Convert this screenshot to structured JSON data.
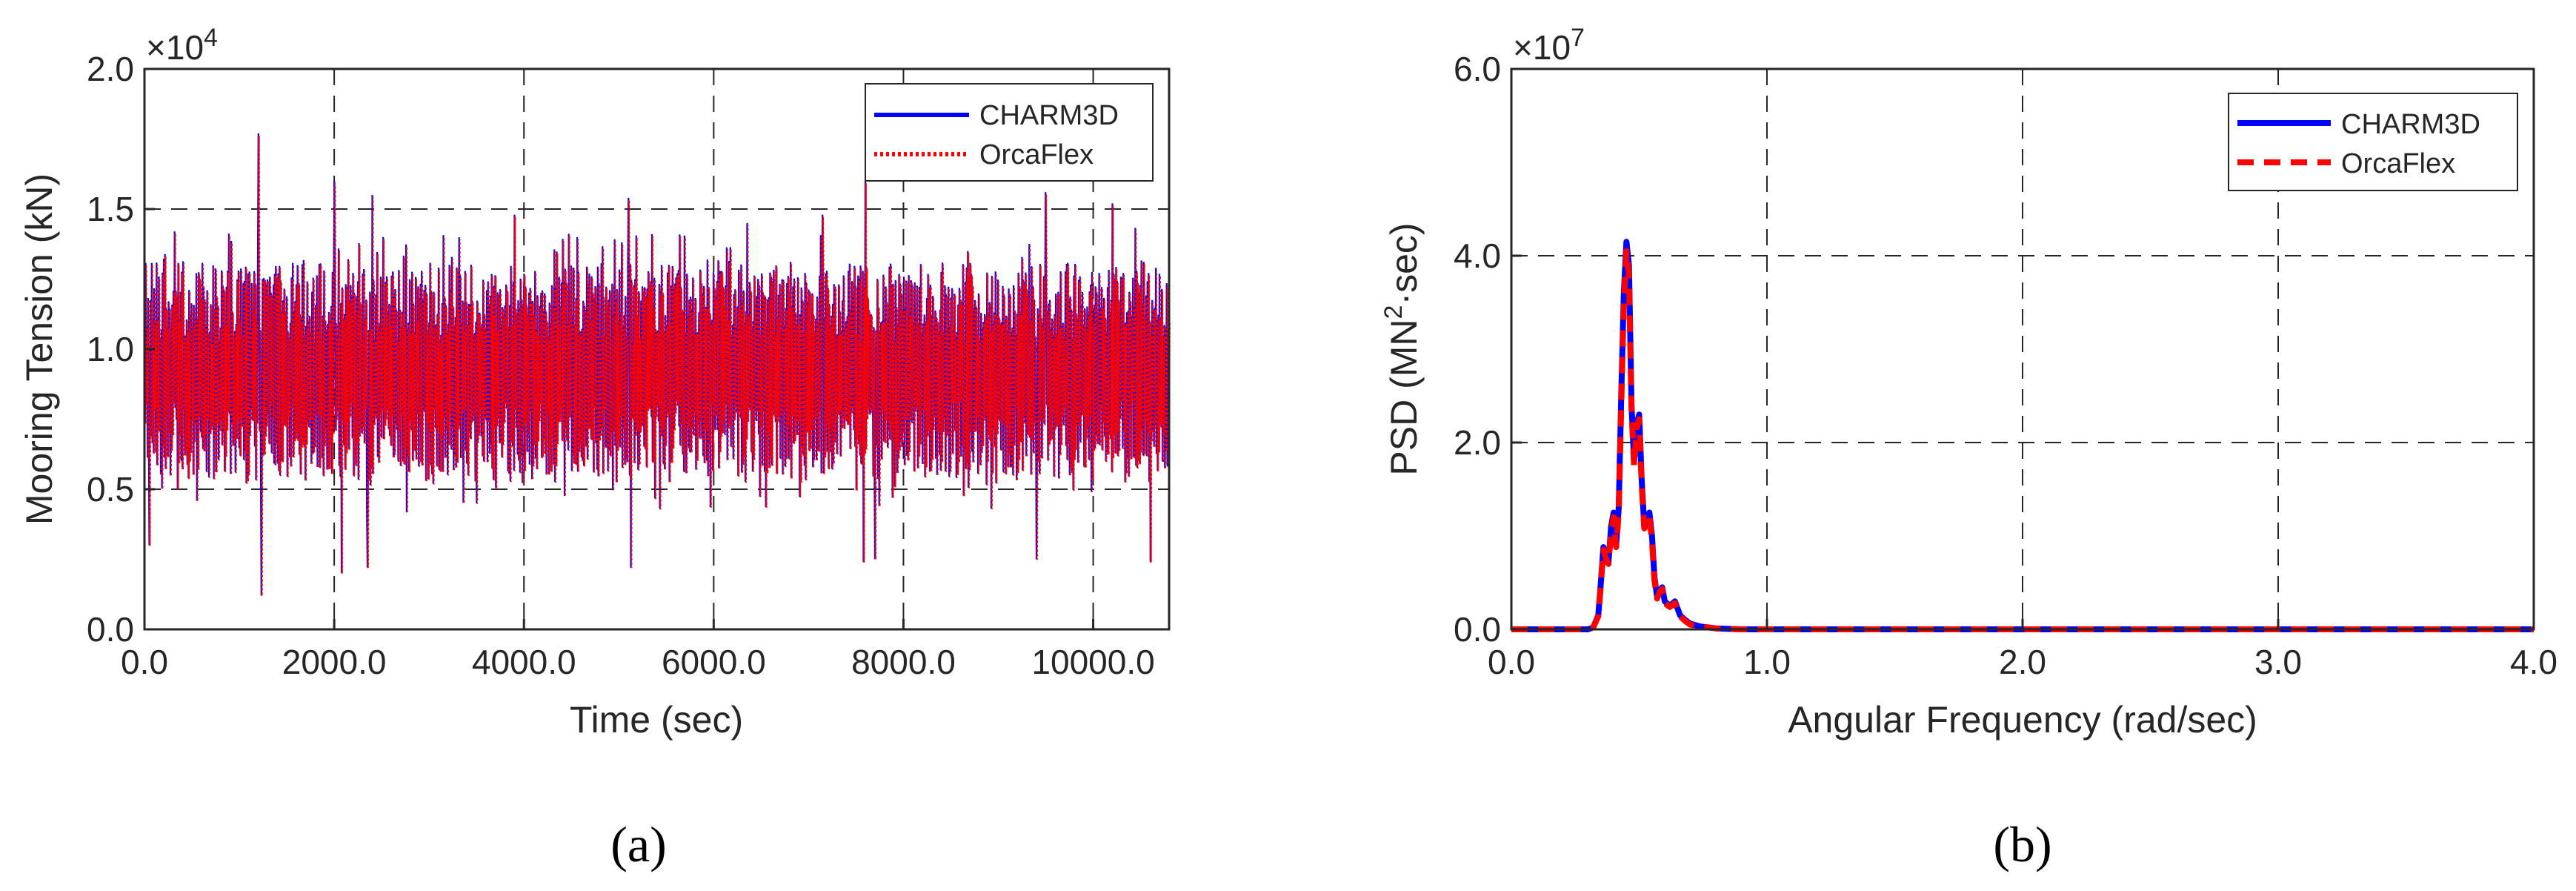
{
  "chart_data": [
    {
      "type": "line",
      "panel_label": "(a)",
      "xlabel": "Time (sec)",
      "ylabel": "Mooring Tension (kN)",
      "y_multiplier": "×10",
      "y_multiplier_exp": "4",
      "xlim": [
        0,
        10800
      ],
      "ylim": [
        0,
        2.0
      ],
      "xticks": [
        0,
        2000,
        4000,
        6000,
        8000,
        10000
      ],
      "xtick_labels": [
        "0.0",
        "2000.0",
        "4000.0",
        "6000.0",
        "8000.0",
        "10000.0"
      ],
      "yticks": [
        0,
        0.5,
        1.0,
        1.5,
        2.0
      ],
      "ytick_labels": [
        "0.0",
        "0.5",
        "1.0",
        "1.5",
        "2.0"
      ],
      "grid": "dashed",
      "legend_position": "top-right",
      "series": [
        {
          "name": "CHARM3D",
          "color": "#0000ff",
          "style": "solid"
        },
        {
          "name": "OrcaFlex",
          "color": "#ff0000",
          "style": "dotted"
        }
      ],
      "signal": {
        "mean": 0.92,
        "t_start": 0,
        "t_end": 10800,
        "peaks": [
          {
            "t": 1200,
            "y": 1.77
          },
          {
            "t": 1230,
            "y": 0.12
          },
          {
            "t": 2000,
            "y": 1.6
          },
          {
            "t": 2080,
            "y": 0.2
          },
          {
            "t": 2400,
            "y": 1.55
          },
          {
            "t": 2350,
            "y": 0.22
          },
          {
            "t": 5100,
            "y": 1.54
          },
          {
            "t": 5130,
            "y": 0.22
          },
          {
            "t": 7600,
            "y": 1.6
          },
          {
            "t": 7580,
            "y": 0.24
          },
          {
            "t": 7700,
            "y": 0.25
          },
          {
            "t": 9400,
            "y": 0.25
          },
          {
            "t": 10600,
            "y": 0.24
          },
          {
            "t": 9500,
            "y": 1.56
          },
          {
            "t": 6350,
            "y": 1.45
          },
          {
            "t": 320,
            "y": 1.42
          },
          {
            "t": 10200,
            "y": 1.52
          },
          {
            "t": 50,
            "y": 0.3
          },
          {
            "t": 3900,
            "y": 1.48
          },
          {
            "t": 7150,
            "y": 1.48
          }
        ]
      }
    },
    {
      "type": "line",
      "panel_label": "(b)",
      "xlabel": "Angular Frequency (rad/sec)",
      "ylabel_pre": "PSD (MN",
      "ylabel_sup": "2",
      "ylabel_post": "·sec)",
      "y_multiplier": "×10",
      "y_multiplier_exp": "7",
      "xlim": [
        0,
        4.0
      ],
      "ylim": [
        0,
        6.0
      ],
      "xticks": [
        0,
        1,
        2,
        3,
        4
      ],
      "xtick_labels": [
        "0.0",
        "1.0",
        "2.0",
        "3.0",
        "4.0"
      ],
      "yticks": [
        0,
        2,
        4,
        6
      ],
      "ytick_labels": [
        "0.0",
        "2.0",
        "4.0",
        "6.0"
      ],
      "grid": "dashed",
      "legend_position": "top-right",
      "series": [
        {
          "name": "CHARM3D",
          "color": "#0000ff",
          "style": "solid",
          "x": [
            0,
            0.3,
            0.32,
            0.34,
            0.35,
            0.36,
            0.37,
            0.38,
            0.39,
            0.4,
            0.41,
            0.42,
            0.43,
            0.44,
            0.45,
            0.46,
            0.47,
            0.48,
            0.49,
            0.5,
            0.51,
            0.52,
            0.53,
            0.54,
            0.55,
            0.56,
            0.57,
            0.58,
            0.59,
            0.6,
            0.62,
            0.64,
            0.66,
            0.68,
            0.7,
            0.74,
            0.8,
            0.9,
            1.0,
            2.0,
            3.0,
            4.0
          ],
          "y": [
            0,
            0,
            0.02,
            0.15,
            0.5,
            0.88,
            0.78,
            0.72,
            1.1,
            1.25,
            0.9,
            1.3,
            2.5,
            3.6,
            4.15,
            3.9,
            2.4,
            1.8,
            2.2,
            2.3,
            1.6,
            1.1,
            1.15,
            1.25,
            1.0,
            0.55,
            0.35,
            0.42,
            0.45,
            0.3,
            0.25,
            0.3,
            0.15,
            0.1,
            0.06,
            0.03,
            0.01,
            0,
            0,
            0,
            0,
            0
          ]
        },
        {
          "name": "OrcaFlex",
          "color": "#ff0000",
          "style": "dashed",
          "x": [
            0,
            0.3,
            0.32,
            0.34,
            0.35,
            0.36,
            0.37,
            0.38,
            0.39,
            0.4,
            0.41,
            0.42,
            0.43,
            0.44,
            0.45,
            0.46,
            0.47,
            0.48,
            0.49,
            0.5,
            0.51,
            0.52,
            0.53,
            0.54,
            0.55,
            0.56,
            0.57,
            0.58,
            0.59,
            0.6,
            0.62,
            0.64,
            0.66,
            0.68,
            0.7,
            0.74,
            0.8,
            0.9,
            1.0,
            2.0,
            3.0,
            4.0
          ],
          "y": [
            0,
            0,
            0.02,
            0.14,
            0.48,
            0.85,
            0.76,
            0.7,
            1.05,
            1.2,
            0.88,
            1.25,
            2.4,
            3.5,
            4.05,
            3.8,
            2.35,
            1.75,
            2.15,
            2.25,
            1.55,
            1.08,
            1.12,
            1.2,
            0.95,
            0.52,
            0.33,
            0.4,
            0.43,
            0.28,
            0.24,
            0.28,
            0.14,
            0.09,
            0.05,
            0.03,
            0.01,
            0,
            0,
            0,
            0,
            0
          ]
        }
      ]
    }
  ]
}
